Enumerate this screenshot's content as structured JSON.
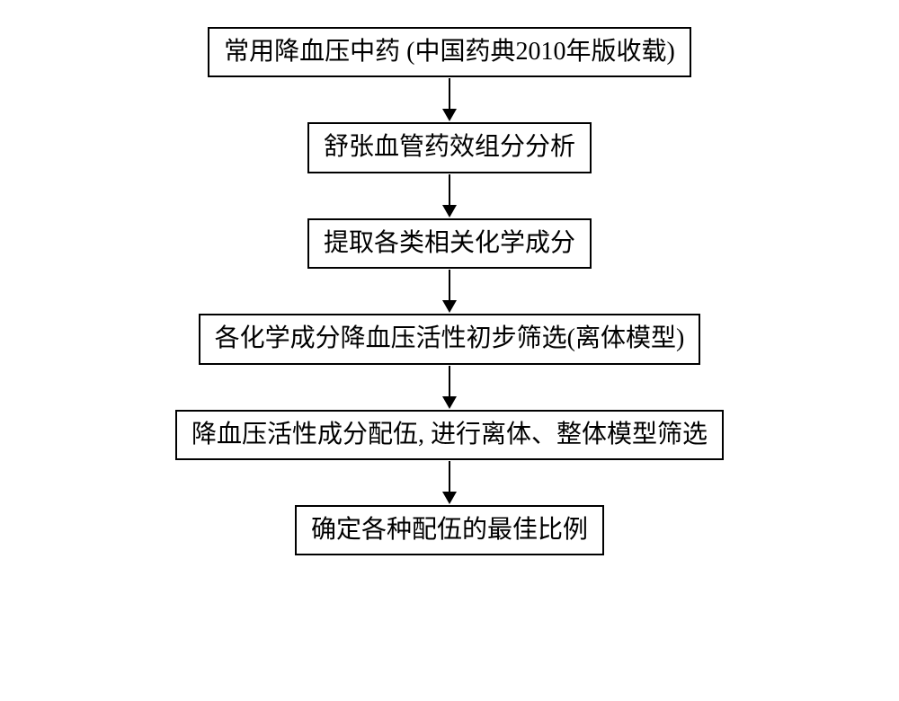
{
  "flowchart": {
    "type": "flowchart",
    "direction": "top-to-bottom",
    "background_color": "#ffffff",
    "border_color": "#000000",
    "border_width": 2,
    "font_family": "SimSun",
    "font_size": 28,
    "text_color": "#000000",
    "arrow_color": "#000000",
    "arrow_length": 50,
    "nodes": [
      {
        "id": "n1",
        "label": "常用降血压中药 (中国药典2010年版收载)"
      },
      {
        "id": "n2",
        "label": "舒张血管药效组分分析"
      },
      {
        "id": "n3",
        "label": "提取各类相关化学成分"
      },
      {
        "id": "n4",
        "label": "各化学成分降血压活性初步筛选(离体模型)"
      },
      {
        "id": "n5",
        "label": "降血压活性成分配伍, 进行离体、整体模型筛选"
      },
      {
        "id": "n6",
        "label": "确定各种配伍的最佳比例"
      }
    ],
    "edges": [
      {
        "from": "n1",
        "to": "n2"
      },
      {
        "from": "n2",
        "to": "n3"
      },
      {
        "from": "n3",
        "to": "n4"
      },
      {
        "from": "n4",
        "to": "n5"
      },
      {
        "from": "n5",
        "to": "n6"
      }
    ]
  }
}
